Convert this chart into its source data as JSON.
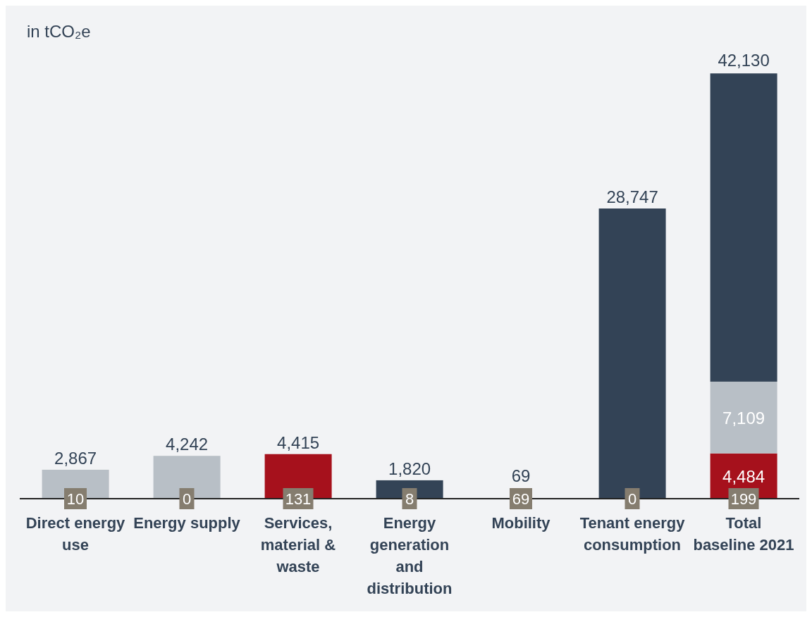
{
  "chart_data": {
    "type": "bar",
    "ylabel": "in tCO₂e",
    "stacked": true,
    "categories": [
      "Direct energy use",
      "Energy supply",
      "Services, material & waste",
      "Energy generation and distribution",
      "Mobility",
      "Tenant energy consumption",
      "Total baseline 2021"
    ],
    "series": [
      {
        "color": "#a6111c",
        "values": [
          null,
          null,
          4415,
          null,
          69,
          null,
          4484
        ],
        "value_labels": [
          null,
          null,
          "4,415",
          null,
          "69",
          null,
          "4,484"
        ]
      },
      {
        "color": "#b8bfc6",
        "values": [
          2867,
          4242,
          null,
          null,
          null,
          null,
          7109
        ],
        "value_labels": [
          "2,867",
          "4,242",
          null,
          null,
          null,
          null,
          "7,109"
        ]
      },
      {
        "color": "#334356",
        "values": [
          null,
          null,
          null,
          1820,
          null,
          28747,
          30537
        ],
        "value_labels": [
          null,
          null,
          null,
          "1,820",
          null,
          "28,747",
          null
        ]
      }
    ],
    "totals": [
      null,
      null,
      null,
      null,
      null,
      null,
      "42,130"
    ],
    "annotations": [
      {
        "text": "10",
        "x": "Direct energy use",
        "y": 0
      },
      {
        "text": "0",
        "x": "Energy supply",
        "y": 0
      },
      {
        "text": "131",
        "x": "Services, material & waste",
        "y": 0
      },
      {
        "text": "8",
        "x": "Energy generation and distribution",
        "y": 0
      },
      {
        "text": "69",
        "x": "Mobility",
        "y": 0
      },
      {
        "text": "0",
        "x": "Tenant energy consumption",
        "y": 0
      },
      {
        "text": "199",
        "x": "Total baseline 2021",
        "y": 0
      }
    ]
  }
}
